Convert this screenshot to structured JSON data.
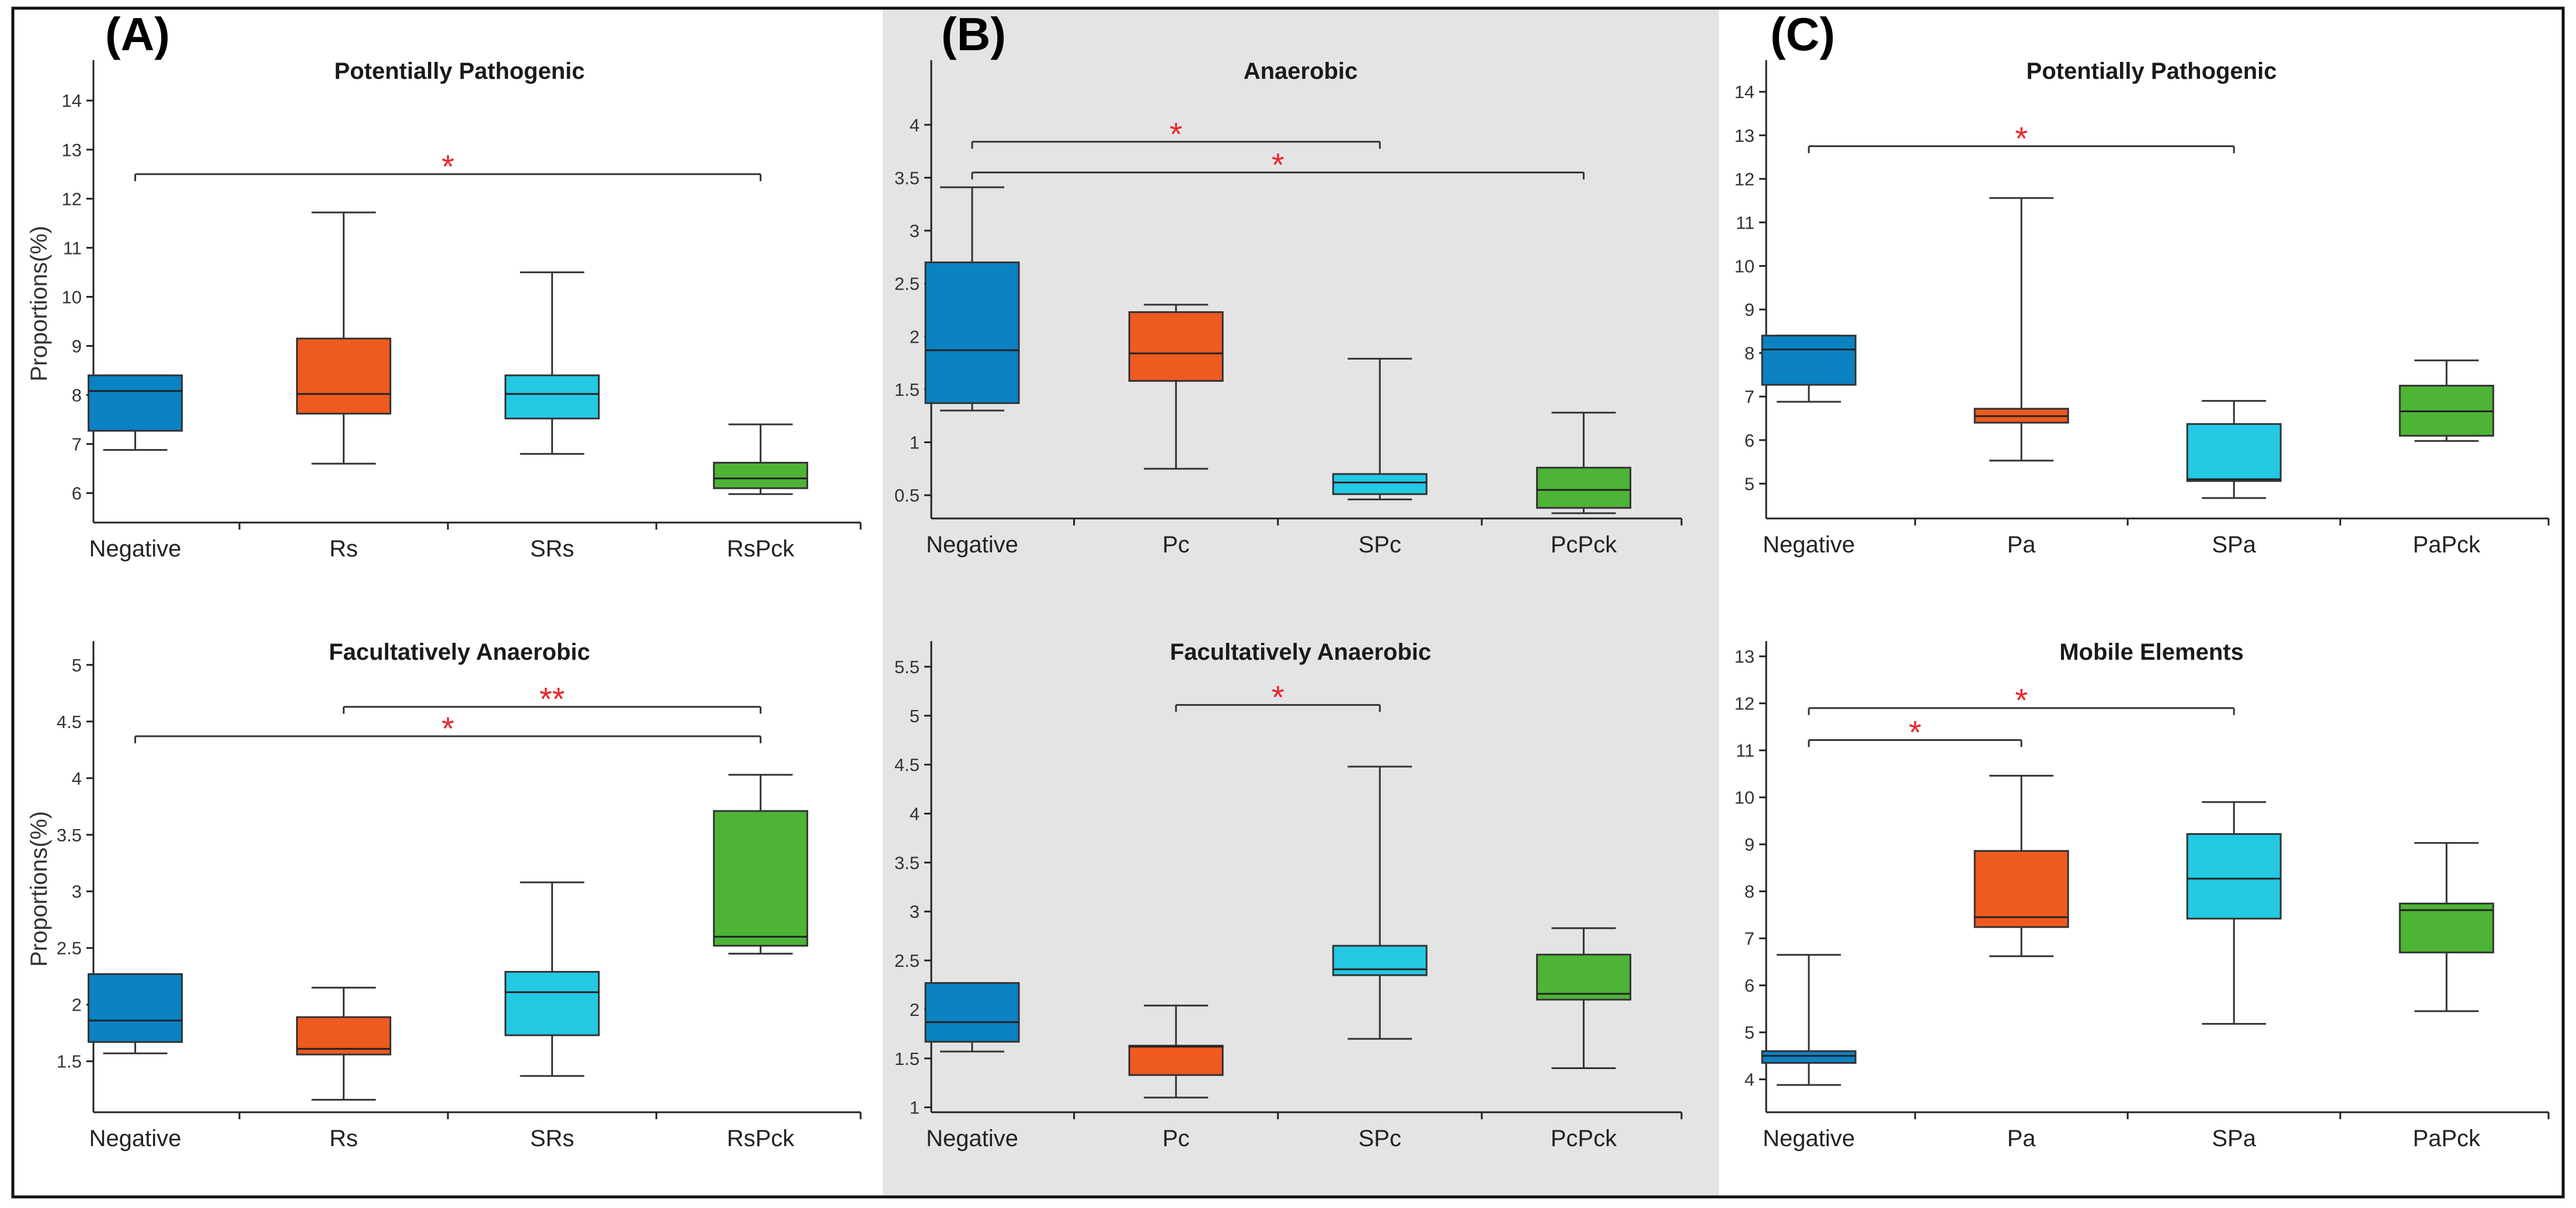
{
  "panel_labels": [
    "(A)",
    "(B)",
    "(C)"
  ],
  "colors": {
    "negative": "#0a82c4",
    "group2": "#ee5a1f",
    "group3": "#24c9e4",
    "group4": "#4db436",
    "significance": "#e8262a",
    "middle_panel_bg": "#e4e4e4"
  },
  "chart_data": [
    {
      "type": "boxplot",
      "panel": "(A)",
      "title": "Potentially Pathogenic",
      "ylabel": "Proportions(%)",
      "ylim": [
        5.4,
        14.8
      ],
      "yticks": [
        6,
        7,
        8,
        9,
        10,
        11,
        12,
        13,
        14
      ],
      "categories": [
        "Negative",
        "Rs",
        "SRs",
        "RsPck"
      ],
      "boxes": [
        {
          "min": 6.88,
          "q1": 7.27,
          "median": 8.08,
          "q3": 8.4,
          "max": 8.4
        },
        {
          "min": 6.6,
          "q1": 7.62,
          "median": 8.02,
          "q3": 9.15,
          "max": 11.72
        },
        {
          "min": 6.8,
          "q1": 7.52,
          "median": 8.02,
          "q3": 8.4,
          "max": 10.5
        },
        {
          "min": 5.98,
          "q1": 6.1,
          "median": 6.3,
          "q3": 6.62,
          "max": 7.4
        }
      ],
      "significance": [
        {
          "from": 0,
          "to": 3,
          "y": 12.5,
          "label": "*"
        }
      ]
    },
    {
      "type": "boxplot",
      "panel": "(B)",
      "title": "Anaerobic",
      "ylabel": "",
      "ylim": [
        0.28,
        4.6
      ],
      "yticks": [
        0.5,
        1,
        1.5,
        2,
        2.5,
        3,
        3.5,
        4
      ],
      "categories": [
        "Negative",
        "Pc",
        "SPc",
        "PcPck"
      ],
      "boxes": [
        {
          "min": 1.3,
          "q1": 1.37,
          "median": 1.87,
          "q3": 2.7,
          "max": 3.41
        },
        {
          "min": 0.75,
          "q1": 1.58,
          "median": 1.84,
          "q3": 2.23,
          "max": 2.3
        },
        {
          "min": 0.46,
          "q1": 0.51,
          "median": 0.62,
          "q3": 0.7,
          "max": 1.79
        },
        {
          "min": 0.33,
          "q1": 0.38,
          "median": 0.55,
          "q3": 0.76,
          "max": 1.28
        }
      ],
      "significance": [
        {
          "from": 0,
          "to": 2,
          "y": 3.84,
          "label": "*"
        },
        {
          "from": 0,
          "to": 3,
          "y": 3.55,
          "label": "*"
        }
      ]
    },
    {
      "type": "boxplot",
      "panel": "(C)",
      "title": "Potentially Pathogenic",
      "ylabel": "",
      "ylim": [
        4.2,
        14.7
      ],
      "yticks": [
        5,
        6,
        7,
        8,
        9,
        10,
        11,
        12,
        13,
        14
      ],
      "categories": [
        "Negative",
        "Pa",
        "SPa",
        "PaPck"
      ],
      "boxes": [
        {
          "min": 6.88,
          "q1": 7.27,
          "median": 8.08,
          "q3": 8.4,
          "max": 8.4
        },
        {
          "min": 5.53,
          "q1": 6.4,
          "median": 6.55,
          "q3": 6.72,
          "max": 11.56
        },
        {
          "min": 4.67,
          "q1": 5.06,
          "median": 5.1,
          "q3": 6.37,
          "max": 6.9
        },
        {
          "min": 5.98,
          "q1": 6.1,
          "median": 6.66,
          "q3": 7.25,
          "max": 7.83
        }
      ],
      "significance": [
        {
          "from": 0,
          "to": 2,
          "y": 12.75,
          "label": "*"
        }
      ]
    },
    {
      "type": "boxplot",
      "panel": "(A)",
      "title": "Facultatively Anaerobic",
      "ylabel": "Proportions(%)",
      "ylim": [
        1.05,
        5.2
      ],
      "yticks": [
        1.5,
        2,
        2.5,
        3,
        3.5,
        4,
        4.5,
        5
      ],
      "categories": [
        "Negative",
        "Rs",
        "SRs",
        "RsPck"
      ],
      "boxes": [
        {
          "min": 1.57,
          "q1": 1.67,
          "median": 1.86,
          "q3": 2.27,
          "max": 2.27
        },
        {
          "min": 1.16,
          "q1": 1.56,
          "median": 1.61,
          "q3": 1.89,
          "max": 2.15
        },
        {
          "min": 1.37,
          "q1": 1.73,
          "median": 2.11,
          "q3": 2.29,
          "max": 3.08
        },
        {
          "min": 2.45,
          "q1": 2.52,
          "median": 2.6,
          "q3": 3.71,
          "max": 4.03
        }
      ],
      "significance": [
        {
          "from": 1,
          "to": 3,
          "y": 4.63,
          "label": "**"
        },
        {
          "from": 0,
          "to": 3,
          "y": 4.37,
          "label": "*"
        }
      ]
    },
    {
      "type": "boxplot",
      "panel": "(B)",
      "title": "Facultatively Anaerobic",
      "ylabel": "",
      "ylim": [
        0.95,
        5.75
      ],
      "yticks": [
        1,
        1.5,
        2,
        2.5,
        3,
        3.5,
        4,
        4.5,
        5,
        5.5
      ],
      "categories": [
        "Negative",
        "Pc",
        "SPc",
        "PcPck"
      ],
      "boxes": [
        {
          "min": 1.57,
          "q1": 1.67,
          "median": 1.87,
          "q3": 2.27,
          "max": 2.27
        },
        {
          "min": 1.1,
          "q1": 1.33,
          "median": 1.62,
          "q3": 1.63,
          "max": 2.04
        },
        {
          "min": 1.7,
          "q1": 2.35,
          "median": 2.41,
          "q3": 2.65,
          "max": 4.48
        },
        {
          "min": 1.4,
          "q1": 2.1,
          "median": 2.16,
          "q3": 2.56,
          "max": 2.83
        }
      ],
      "significance": [
        {
          "from": 1,
          "to": 2,
          "y": 5.11,
          "label": "*"
        }
      ]
    },
    {
      "type": "boxplot",
      "panel": "(C)",
      "title": "Mobile Elements",
      "ylabel": "",
      "ylim": [
        3.3,
        13.3
      ],
      "yticks": [
        4,
        5,
        6,
        7,
        8,
        9,
        10,
        11,
        12,
        13
      ],
      "categories": [
        "Negative",
        "Pa",
        "SPa",
        "PaPck"
      ],
      "boxes": [
        {
          "min": 3.88,
          "q1": 4.35,
          "median": 4.5,
          "q3": 4.6,
          "max": 6.65
        },
        {
          "min": 6.62,
          "q1": 7.24,
          "median": 7.45,
          "q3": 8.86,
          "max": 10.46
        },
        {
          "min": 5.18,
          "q1": 7.42,
          "median": 8.27,
          "q3": 9.22,
          "max": 9.9
        },
        {
          "min": 5.45,
          "q1": 6.7,
          "median": 7.6,
          "q3": 7.74,
          "max": 9.03
        }
      ],
      "significance": [
        {
          "from": 0,
          "to": 2,
          "y": 11.9,
          "label": "*"
        },
        {
          "from": 0,
          "to": 1,
          "y": 11.22,
          "label": "*"
        }
      ]
    }
  ]
}
